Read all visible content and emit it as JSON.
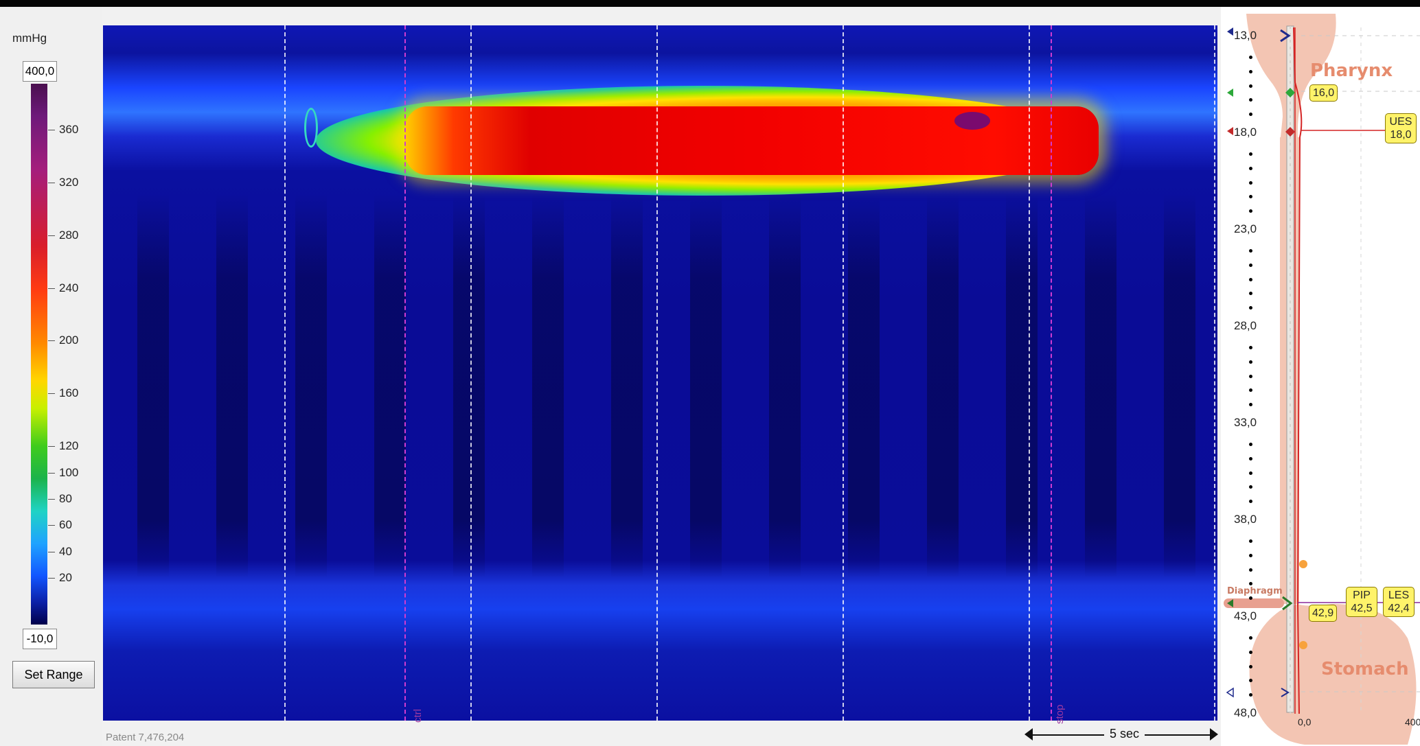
{
  "left_panel": {
    "units": "mmHg",
    "range_max": "400,0",
    "range_min": "-10,0",
    "set_range_button": "Set Range",
    "ticks": [
      360,
      320,
      280,
      240,
      200,
      160,
      120,
      100,
      80,
      60,
      40,
      20
    ],
    "colorbar_stops": [
      "#4a0f4f",
      "#a51e7c",
      "#d91e2b",
      "#ff8a00",
      "#ffd700",
      "#3fcc1c",
      "#1fd3c4",
      "#1256ff",
      "#00004a"
    ]
  },
  "plot": {
    "footer_text": "Patent 7,476,204",
    "scale_label": "5 sec",
    "marker_labels": {
      "ctrl": "ctrl",
      "stop": "stop"
    }
  },
  "right_panel": {
    "depths": [
      "13,0",
      "18,0",
      "23,0",
      "28,0",
      "33,0",
      "38,0",
      "43,0",
      "48,0"
    ],
    "organs": {
      "top": "Pharynx",
      "bottom": "Stomach",
      "diaphragm": "Diaphragm"
    },
    "tags": {
      "upper_marker": "16,0",
      "ues_name": "UES",
      "ues_value": "18,0",
      "marker_a": "42,9",
      "pip_name": "PIP",
      "pip_value": "42,5",
      "les_name": "LES",
      "les_value": "42,4"
    },
    "x_axis_min": "0,0",
    "x_axis_max": "400"
  },
  "colors": {
    "accent_tag": "#fff36a",
    "organ_fill": "#f3c5b3",
    "catheter_line": "#d42424"
  }
}
